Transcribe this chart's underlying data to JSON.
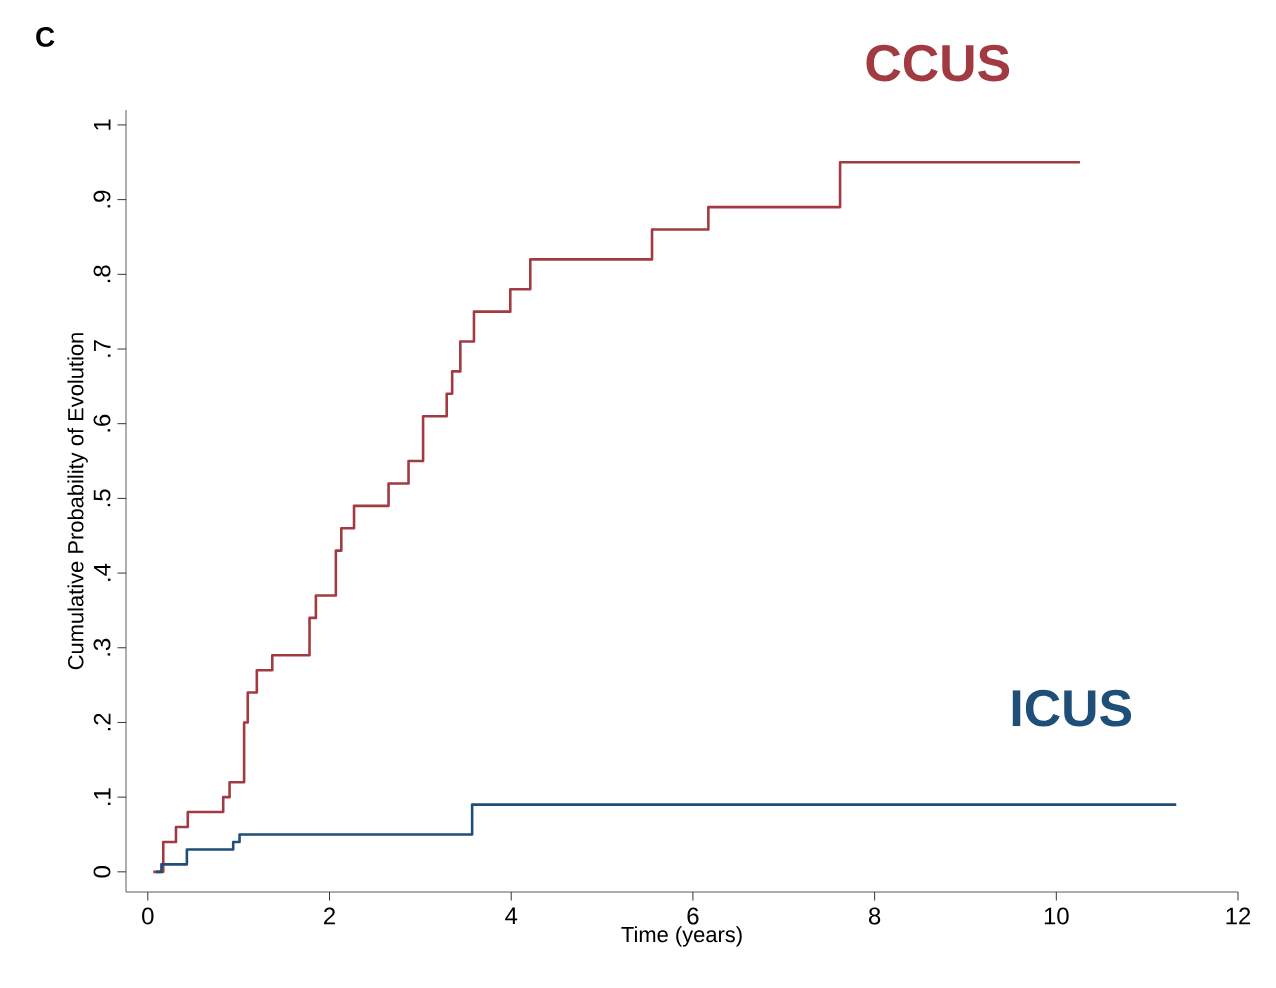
{
  "chart_data": {
    "type": "step",
    "title": "C",
    "xlabel": "Time (years)",
    "ylabel": "Cumulative Probability of Evolution",
    "xlim": [
      -0.24,
      12
    ],
    "ylim": [
      -0.027,
      1.02
    ],
    "xticks": [
      0,
      2,
      4,
      6,
      8,
      10,
      12
    ],
    "yticks": [
      0,
      {
        "value": 0.1,
        "label": ".1"
      },
      {
        "value": 0.2,
        "label": ".2"
      },
      {
        "value": 0.3,
        "label": ".3"
      },
      {
        "value": 0.4,
        "label": ".4"
      },
      {
        "value": 0.5,
        "label": ".5"
      },
      {
        "value": 0.6,
        "label": ".6"
      },
      {
        "value": 0.7,
        "label": ".7"
      },
      {
        "value": 0.8,
        "label": ".8"
      },
      {
        "value": 0.9,
        "label": ".9"
      },
      1
    ],
    "grid": false,
    "legend": false,
    "series": [
      {
        "name": "CCUS",
        "color": "#a23b41",
        "x": [
          0.06,
          0.17,
          0.31,
          0.44,
          0.83,
          0.9,
          1.06,
          1.1,
          1.2,
          1.37,
          1.78,
          1.85,
          2.07,
          2.13,
          2.27,
          2.65,
          2.87,
          3.03,
          3.29,
          3.35,
          3.44,
          3.59,
          3.99,
          4.21,
          5.55,
          6.17,
          7.62,
          10.26
        ],
        "values": [
          0,
          0.04,
          0.06,
          0.08,
          0.1,
          0.12,
          0.2,
          0.24,
          0.27,
          0.29,
          0.34,
          0.37,
          0.43,
          0.46,
          0.49,
          0.52,
          0.55,
          0.61,
          0.64,
          0.67,
          0.71,
          0.75,
          0.78,
          0.82,
          0.86,
          0.89,
          0.95,
          0.95
        ]
      },
      {
        "name": "ICUS",
        "color": "#1f4e79",
        "x": [
          0.09,
          0.15,
          0.43,
          0.94,
          1.01,
          3.57,
          11.32
        ],
        "values": [
          0,
          0.01,
          0.03,
          0.04,
          0.05,
          0.09,
          0.09
        ]
      }
    ]
  }
}
